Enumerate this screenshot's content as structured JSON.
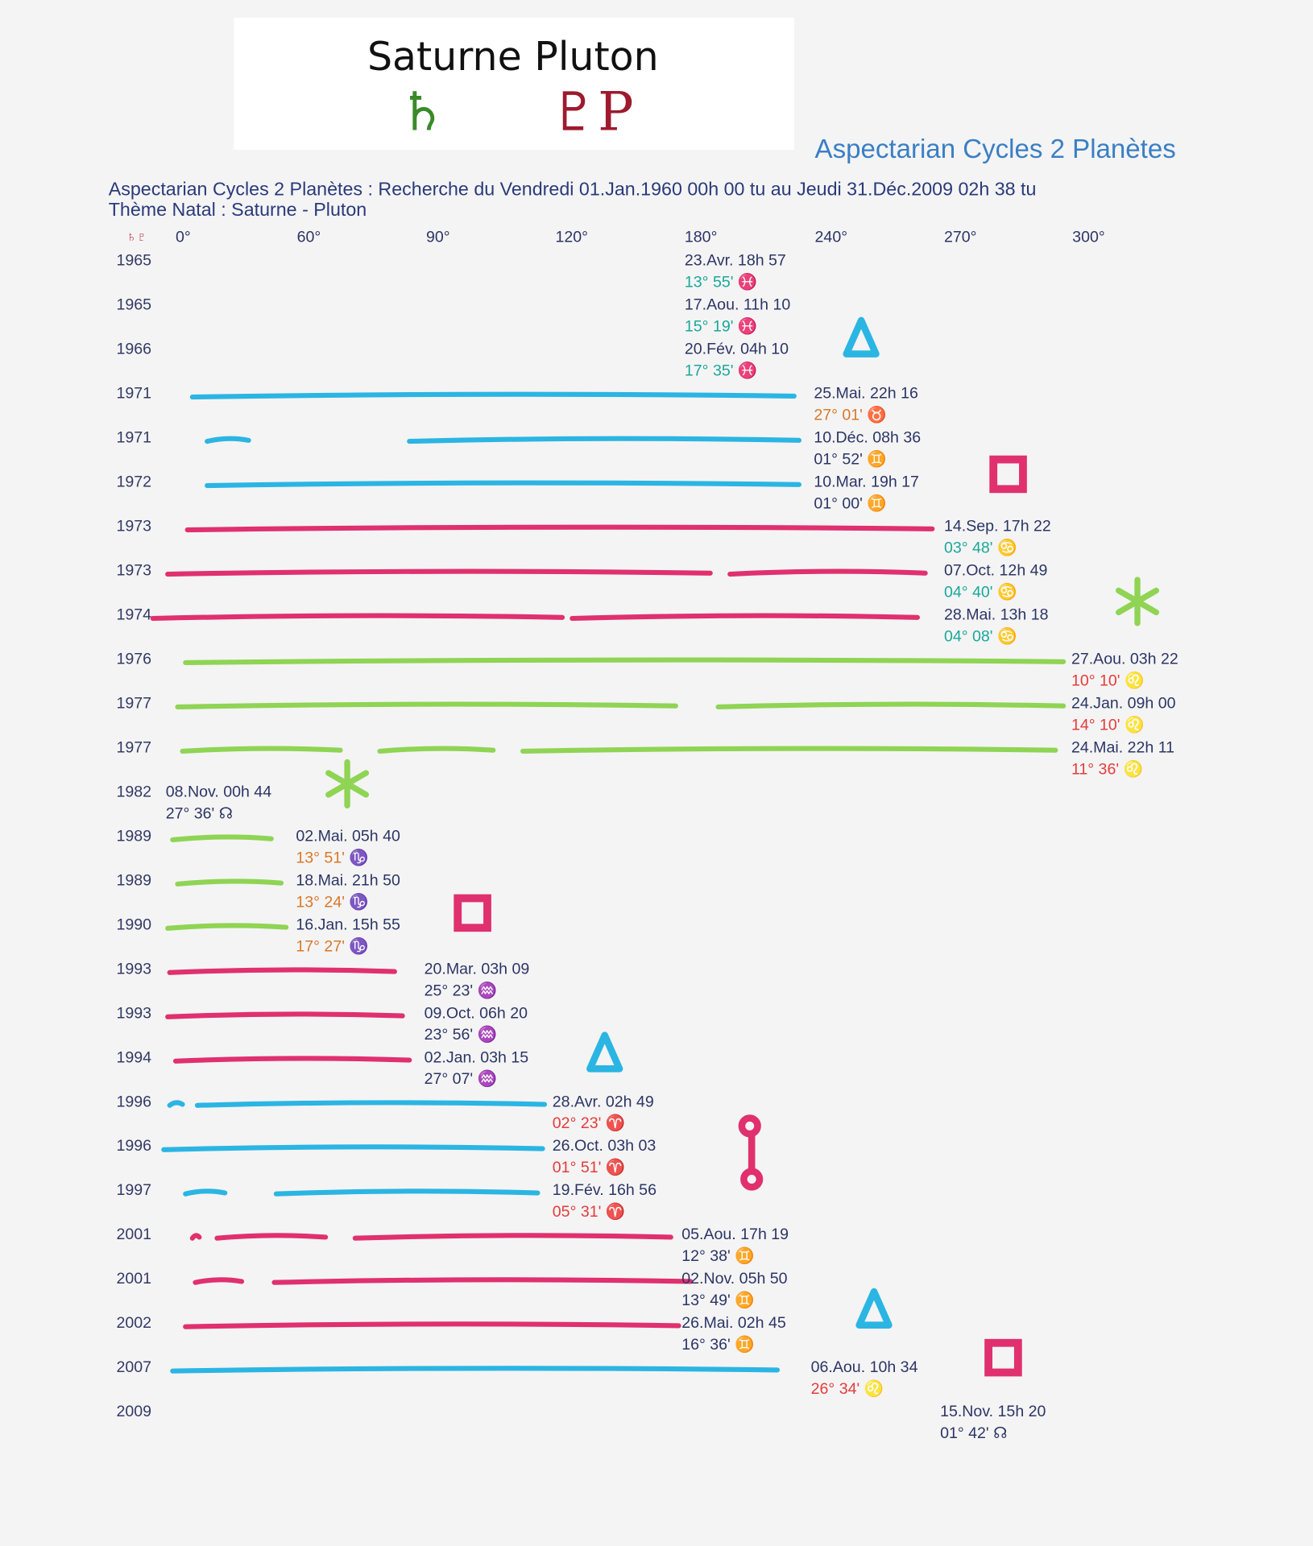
{
  "header": {
    "title": "Saturne Pluton",
    "glyph_saturn": "♄",
    "glyph_pluto": "♇P"
  },
  "document": {
    "heading": "Aspectarian Cycles 2 Planètes",
    "search_line": "Aspectarian Cycles 2 Planètes : Recherche du Vendredi 01.Jan.1960 00h 00 tu au Jeudi 31.Déc.2009 02h 38 tu",
    "natal_line": "Thème Natal : Saturne - Pluton",
    "column_symbols": "♄♇",
    "columns": [
      "0°",
      "60°",
      "90°",
      "120°",
      "180°",
      "240°",
      "270°",
      "300°"
    ],
    "rows": [
      {
        "year": "1965",
        "date": "23.Avr. 18h 57",
        "position": "13° 55' ♓",
        "color": "#1aa89a"
      },
      {
        "year": "1965",
        "date": "17.Aou. 11h 10",
        "position": "15° 19' ♓",
        "color": "#1aa89a"
      },
      {
        "year": "1966",
        "date": "20.Fév. 04h 10",
        "position": "17° 35' ♓",
        "color": "#1aa89a"
      },
      {
        "year": "1971",
        "date": "25.Mai. 22h 16",
        "position": "27° 01' ♉",
        "color": "#d9782a"
      },
      {
        "year": "1971",
        "date": "10.Déc. 08h 36",
        "position": "01° 52' ♊",
        "color": "#2c3566"
      },
      {
        "year": "1972",
        "date": "10.Mar. 19h 17",
        "position": "01° 00' ♊",
        "color": "#2c3566"
      },
      {
        "year": "1973",
        "date": "14.Sep. 17h 22",
        "position": "03° 48' ♋",
        "color": "#1aa89a"
      },
      {
        "year": "1973",
        "date": "07.Oct. 12h 49",
        "position": "04° 40' ♋",
        "color": "#1aa89a"
      },
      {
        "year": "1974",
        "date": "28.Mai. 13h 18",
        "position": "04° 08' ♋",
        "color": "#1aa89a"
      },
      {
        "year": "1976",
        "date": "27.Aou. 03h 22",
        "position": "10° 10' ♌",
        "color": "#e63b3b"
      },
      {
        "year": "1977",
        "date": "24.Jan. 09h 00",
        "position": "14° 10' ♌",
        "color": "#e63b3b"
      },
      {
        "year": "1977",
        "date": "24.Mai. 22h 11",
        "position": "11° 36' ♌",
        "color": "#e63b3b"
      },
      {
        "year": "1982",
        "date": "08.Nov. 00h 44",
        "position": "27° 36' ☊",
        "color": "#2c3566"
      },
      {
        "year": "1989",
        "date": "02.Mai. 05h 40",
        "position": "13° 51' ♑",
        "color": "#d9782a"
      },
      {
        "year": "1989",
        "date": "18.Mai. 21h 50",
        "position": "13° 24' ♑",
        "color": "#d9782a"
      },
      {
        "year": "1990",
        "date": "16.Jan. 15h 55",
        "position": "17° 27' ♑",
        "color": "#d9782a"
      },
      {
        "year": "1993",
        "date": "20.Mar. 03h 09",
        "position": "25° 23' ♒",
        "color": "#2c3566"
      },
      {
        "year": "1993",
        "date": "09.Oct. 06h 20",
        "position": "23° 56' ♒",
        "color": "#2c3566"
      },
      {
        "year": "1994",
        "date": "02.Jan. 03h 15",
        "position": "27° 07' ♒",
        "color": "#2c3566"
      },
      {
        "year": "1996",
        "date": "28.Avr. 02h 49",
        "position": "02° 23' ♈",
        "color": "#e63b3b"
      },
      {
        "year": "1996",
        "date": "26.Oct. 03h 03",
        "position": "01° 51' ♈",
        "color": "#e63b3b"
      },
      {
        "year": "1997",
        "date": "19.Fév. 16h 56",
        "position": "05° 31' ♈",
        "color": "#e63b3b"
      },
      {
        "year": "2001",
        "date": "05.Aou. 17h 19",
        "position": "12° 38' ♊",
        "color": "#2c3566"
      },
      {
        "year": "2001",
        "date": "02.Nov. 05h 50",
        "position": "13° 49' ♊",
        "color": "#2c3566"
      },
      {
        "year": "2002",
        "date": "26.Mai. 02h 45",
        "position": "16° 36' ♊",
        "color": "#2c3566"
      },
      {
        "year": "2007",
        "date": "06.Aou. 10h 34",
        "position": "26° 34' ♌",
        "color": "#e63b3b"
      },
      {
        "year": "2009",
        "date": "15.Nov. 15h 20",
        "position": "01° 42' ☊",
        "color": "#2c3566"
      }
    ]
  }
}
